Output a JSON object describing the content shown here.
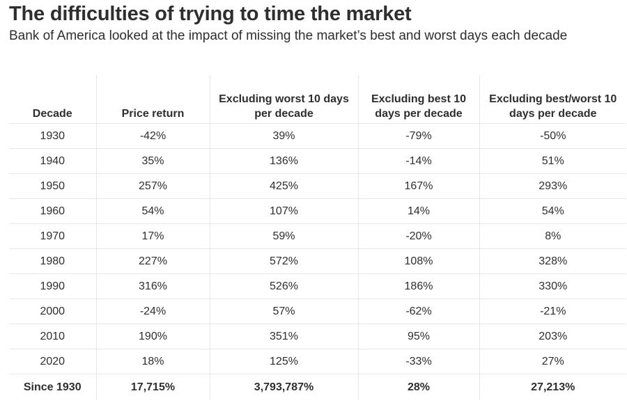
{
  "title": "The difficulties of trying to time the market",
  "subtitle": "Bank of America looked at the impact of missing the market’s best and worst days each decade",
  "table": {
    "headers": [
      "Decade",
      "Price return",
      "Excluding worst 10 days per decade",
      "Excluding best 10 days per decade",
      "Excluding best/worst 10 days per decade"
    ],
    "rows": [
      [
        "1930",
        "-42%",
        "39%",
        "-79%",
        "-50%"
      ],
      [
        "1940",
        "35%",
        "136%",
        "-14%",
        "51%"
      ],
      [
        "1950",
        "257%",
        "425%",
        "167%",
        "293%"
      ],
      [
        "1960",
        "54%",
        "107%",
        "14%",
        "54%"
      ],
      [
        "1970",
        "17%",
        "59%",
        "-20%",
        "8%"
      ],
      [
        "1980",
        "227%",
        "572%",
        "108%",
        "328%"
      ],
      [
        "1990",
        "316%",
        "526%",
        "186%",
        "330%"
      ],
      [
        "2000",
        "-24%",
        "57%",
        "-62%",
        "-21%"
      ],
      [
        "2010",
        "190%",
        "351%",
        "95%",
        "203%"
      ],
      [
        "2020",
        "18%",
        "125%",
        "-33%",
        "27%"
      ]
    ],
    "total": [
      "Since 1930",
      "17,715%",
      "3,793,787%",
      "28%",
      "27,213%"
    ]
  }
}
